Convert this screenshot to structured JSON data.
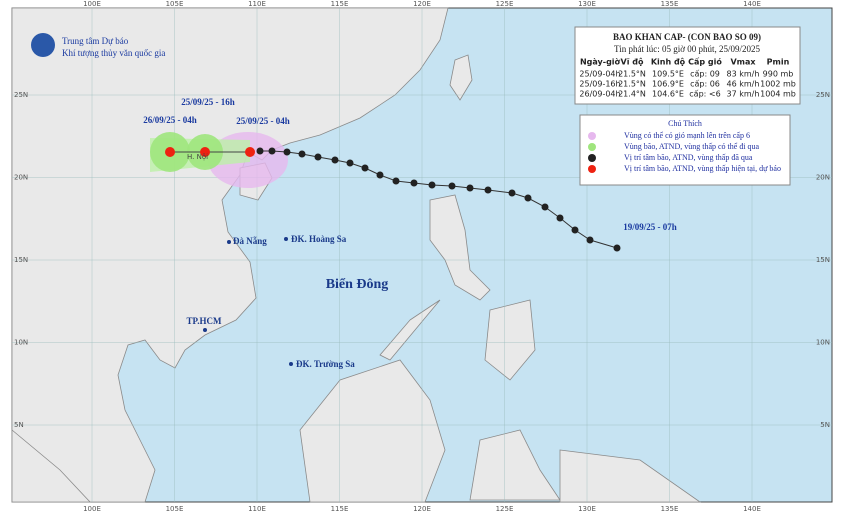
{
  "header": {
    "agency": [
      "Trung tâm Dự báo",
      "Khí tượng thủy văn quốc gia"
    ]
  },
  "bulletin": {
    "title": "BAO KHAN CAP- (CON BAO SO 09)",
    "issued": "Tin phát lúc: 05 giờ 00 phút, 25/09/2025",
    "table": {
      "columns": [
        "Ngày-giờ",
        "Vĩ độ",
        "Kinh độ",
        "Cấp gió",
        "Vmax",
        "Pmin"
      ],
      "rows": [
        [
          "25/09-04h",
          "21.5°N",
          "109.5°E",
          "cấp: 09",
          "83 km/h",
          "990 mb"
        ],
        [
          "25/09-16h",
          "21.5°N",
          "106.9°E",
          "cấp: 06",
          "46 km/h",
          "1002 mb"
        ],
        [
          "26/09-04h",
          "21.4°N",
          "104.6°E",
          "cấp: <6",
          "37 km/h",
          "1004 mb"
        ]
      ]
    }
  },
  "legend": {
    "title": "Chú Thích",
    "items": [
      "Vùng có thể có gió mạnh lên trên cấp 6",
      "Vùng bão, ATND, vùng thấp có thể đi qua",
      "Vị trí tâm bão, ATND, vùng thấp đã qua",
      "Vị trí tâm bão, ATND, vùng thấp hiện tại, dự báo"
    ]
  },
  "map": {
    "lon_labels": [
      "100E",
      "105E",
      "110E",
      "115E",
      "120E",
      "125E",
      "130E",
      "135E",
      "140E"
    ],
    "lat_labels": [
      "25N",
      "20N",
      "15N",
      "10N",
      "5N"
    ],
    "track_labels": [
      "26/09/25 - 04h",
      "25/09/25 - 16h",
      "25/09/25 - 04h",
      "19/09/25 - 07h"
    ],
    "places": [
      "Đà Nẵng",
      "ĐK. Hoàng Sa",
      "Biển Đông",
      "TP.HCM",
      "ĐK. Trường Sa",
      "H. Nội"
    ]
  }
}
